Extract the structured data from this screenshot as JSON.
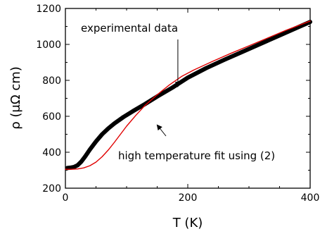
{
  "chart_data": {
    "type": "line",
    "xlabel": "T (K)",
    "ylabel": "ρ (μΩ cm)",
    "xlim": [
      0,
      400
    ],
    "ylim": [
      200,
      1200
    ],
    "xticks": [
      0,
      200,
      400
    ],
    "yticks": [
      200,
      400,
      600,
      800,
      1000,
      1200
    ],
    "grid": false,
    "series": [
      {
        "name": "experimental data",
        "color": "#000000",
        "style": "thick-points",
        "x": [
          3,
          8,
          14,
          20,
          26,
          32,
          40,
          50,
          60,
          70,
          80,
          95,
          110,
          130,
          150,
          175,
          200,
          230,
          260,
          290,
          320,
          350,
          380,
          400
        ],
        "y": [
          312,
          314,
          318,
          328,
          348,
          375,
          415,
          460,
          500,
          532,
          560,
          596,
          628,
          668,
          710,
          760,
          815,
          868,
          915,
          960,
          1005,
          1050,
          1095,
          1125
        ]
      },
      {
        "name": "high temperature fit using (2)",
        "color": "#e00000",
        "style": "line",
        "x": [
          0,
          10,
          20,
          30,
          40,
          50,
          60,
          70,
          80,
          90,
          100,
          115,
          130,
          150,
          170,
          190,
          210,
          240,
          270,
          300,
          330,
          360,
          400
        ],
        "y": [
          305,
          305,
          307,
          313,
          325,
          345,
          375,
          412,
          455,
          500,
          545,
          605,
          660,
          720,
          775,
          822,
          858,
          905,
          950,
          992,
          1035,
          1078,
          1130
        ]
      }
    ],
    "annotations": [
      {
        "text": "experimental data",
        "arrow_from": [
          93,
          1040
        ],
        "arrow_to": [
          93,
          780
        ]
      },
      {
        "text": "high temperature fit using (2)",
        "arrow_from": [
          168,
          450
        ],
        "arrow_to": [
          150,
          510
        ]
      }
    ]
  }
}
